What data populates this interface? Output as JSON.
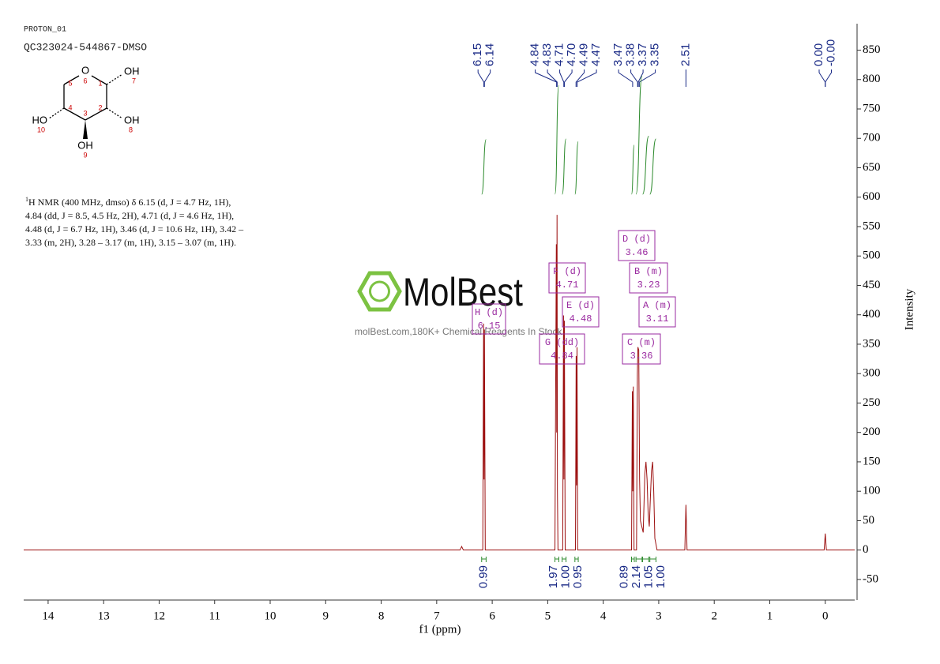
{
  "header": {
    "experiment": "PROTON_01",
    "sample": "QC323024-544867-DMSO"
  },
  "structure_labels": [
    "O",
    "6",
    "1",
    "OH",
    "7",
    "5",
    "2",
    "4",
    "3",
    "HO",
    "10",
    "OH",
    "8",
    "OH",
    "9"
  ],
  "description": {
    "sup": "1",
    "text": "H NMR (400 MHz, dmso) δ 6.15 (d, J = 4.7 Hz, 1H), 4.84 (dd, J = 8.5, 4.5 Hz, 2H), 4.71 (d, J = 4.6 Hz, 1H), 4.48 (d, J = 6.7 Hz, 1H), 3.46 (d, J = 10.6 Hz, 1H), 3.42 – 3.33 (m, 2H), 3.28 – 3.17 (m, 1H), 3.15 – 3.07 (m, 1H)."
  },
  "watermark": {
    "brand": "MolBest",
    "tagline": "molBest.com,180K+ Chemical Reagents In Stock."
  },
  "chart_data": {
    "type": "line",
    "x_label": "f1 (ppm)",
    "y_label": "Intensity",
    "xlim": [
      14.44,
      -0.53
    ],
    "ylim": [
      -85,
      895
    ],
    "xticks": [
      14,
      13,
      12,
      11,
      10,
      9,
      8,
      7,
      6,
      5,
      4,
      3,
      2,
      1,
      0
    ],
    "yticks": [
      -50,
      0,
      50,
      100,
      150,
      200,
      250,
      300,
      350,
      400,
      450,
      500,
      550,
      600,
      650,
      700,
      750,
      800,
      850
    ],
    "x": [
      14.44,
      6.58,
      6.55,
      6.52,
      6.17,
      6.155,
      6.147,
      6.14,
      6.125,
      4.87,
      4.845,
      4.838,
      4.832,
      4.825,
      4.815,
      4.73,
      4.715,
      4.708,
      4.7,
      4.685,
      4.5,
      4.488,
      4.48,
      4.472,
      4.46,
      3.49,
      3.475,
      3.468,
      3.458,
      3.445,
      3.4,
      3.385,
      3.375,
      3.36,
      3.345,
      3.33,
      3.28,
      3.25,
      3.23,
      3.21,
      3.19,
      3.17,
      3.15,
      3.13,
      3.11,
      3.09,
      3.07,
      3.03,
      2.53,
      2.51,
      2.49,
      0.02,
      0,
      -0.02,
      -0.53
    ],
    "series": [
      {
        "color": "#9c1010",
        "values": [
          0,
          0,
          6,
          0,
          0,
          385,
          120,
          375,
          0,
          0,
          520,
          200,
          570,
          100,
          0,
          0,
          399,
          120,
          390,
          0,
          0,
          330,
          110,
          345,
          0,
          0,
          270,
          100,
          278,
          0,
          0,
          300,
          345,
          340,
          120,
          50,
          30,
          130,
          150,
          120,
          60,
          40,
          90,
          135,
          150,
          100,
          20,
          0,
          0,
          77,
          0,
          0,
          28,
          0,
          0
        ]
      }
    ],
    "peak_labels": [
      6.15,
      6.14,
      4.84,
      4.83,
      4.71,
      {
        "value": 4.7,
        "label": "4.70"
      },
      4.49,
      4.47,
      3.47,
      3.38,
      3.37,
      3.35,
      2.51,
      {
        "value": 0,
        "label": "0.00"
      },
      {
        "value": 0,
        "label": "-0.00"
      }
    ],
    "peak_label_color": "#1a2a86",
    "integrals": {
      "from": [
        6.19,
        4.87,
        4.74,
        4.51,
        3.49,
        3.41,
        3.29,
        3.16
      ],
      "to": [
        6.11,
        4.8,
        4.67,
        4.45,
        3.44,
        3.3,
        3.18,
        3.05
      ],
      "values": [
        0.99,
        1.97,
        1,
        0.95,
        0.89,
        2.14,
        1.05,
        1
      ],
      "value_labels": [
        "0.99",
        "1.97",
        "1.00",
        "0.95",
        "0.89",
        "2.14",
        "1.05",
        "1.00"
      ],
      "color": "#2e8b2e"
    },
    "multiplets": {
      "labels": [
        "A (m)",
        "B (m)",
        "C (m)",
        "D (d)",
        "E (d)",
        "F (d)",
        "G (dd)",
        "H (d)"
      ],
      "shifts": [
        3.11,
        3.23,
        3.36,
        3.46,
        4.48,
        4.71,
        4.84,
        6.15
      ],
      "color": "#9a2aa0"
    }
  }
}
